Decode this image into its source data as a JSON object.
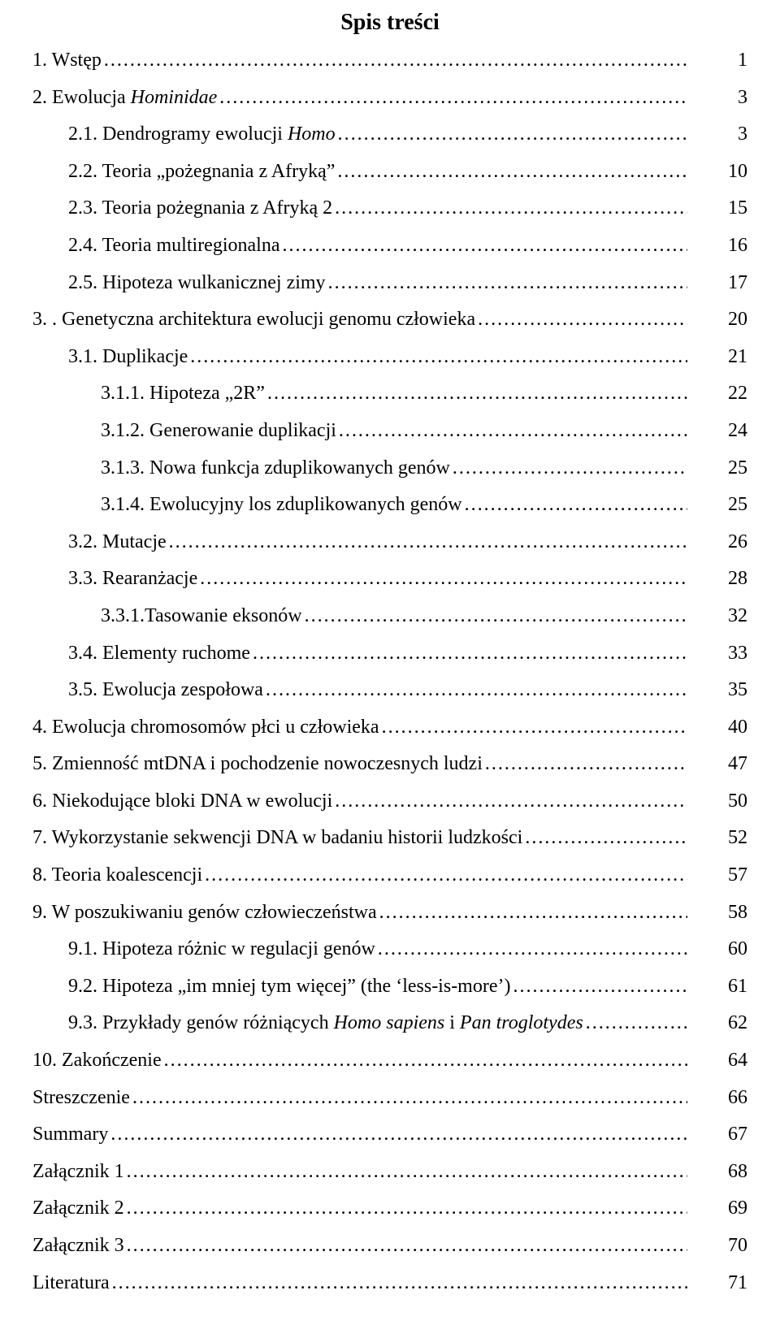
{
  "title": "Spis treści",
  "fonts": {
    "body_pt": 24,
    "title_pt": 28,
    "color": "#000000",
    "background": "#ffffff"
  },
  "entries": [
    {
      "label_pre": "1. Wstęp",
      "label_italic": "",
      "label_post": "",
      "page": "1",
      "indent": 0
    },
    {
      "label_pre": "2. Ewolucja ",
      "label_italic": "Hominidae",
      "label_post": "",
      "page": "3",
      "indent": 0
    },
    {
      "label_pre": "2.1. Dendrogramy ewolucji ",
      "label_italic": "Homo",
      "label_post": "",
      "page": "3",
      "indent": 1
    },
    {
      "label_pre": "2.2. Teoria „pożegnania z Afryką”",
      "label_italic": "",
      "label_post": "",
      "page": "10",
      "indent": 1
    },
    {
      "label_pre": "2.3. Teoria pożegnania z Afryką 2",
      "label_italic": "",
      "label_post": "",
      "page": "15",
      "indent": 1
    },
    {
      "label_pre": "2.4. Teoria multiregionalna",
      "label_italic": "",
      "label_post": "",
      "page": "16",
      "indent": 1
    },
    {
      "label_pre": "2.5. Hipoteza wulkanicznej zimy",
      "label_italic": "",
      "label_post": "",
      "page": "17",
      "indent": 1
    },
    {
      "label_pre": "3. . Genetyczna architektura ewolucji genomu człowieka",
      "label_italic": "",
      "label_post": "",
      "page": "20",
      "indent": 0
    },
    {
      "label_pre": "3.1. Duplikacje",
      "label_italic": "",
      "label_post": "",
      "page": "21",
      "indent": 1
    },
    {
      "label_pre": "3.1.1. Hipoteza „2R”",
      "label_italic": "",
      "label_post": "",
      "page": "22",
      "indent": 2
    },
    {
      "label_pre": "3.1.2. Generowanie duplikacji",
      "label_italic": "",
      "label_post": "",
      "page": "24",
      "indent": 2
    },
    {
      "label_pre": "3.1.3. Nowa funkcja zduplikowanych genów",
      "label_italic": "",
      "label_post": "",
      "page": "25",
      "indent": 2
    },
    {
      "label_pre": "3.1.4. Ewolucyjny los zduplikowanych genów",
      "label_italic": "",
      "label_post": "",
      "page": "25",
      "indent": 2
    },
    {
      "label_pre": "3.2. Mutacje",
      "label_italic": "",
      "label_post": "",
      "page": "26",
      "indent": 1
    },
    {
      "label_pre": "3.3. Rearanżacje",
      "label_italic": "",
      "label_post": "",
      "page": "28",
      "indent": 1
    },
    {
      "label_pre": "3.3.1.Tasowanie eksonów",
      "label_italic": "",
      "label_post": "",
      "page": "32",
      "indent": 2
    },
    {
      "label_pre": "3.4. Elementy ruchome",
      "label_italic": "",
      "label_post": "",
      "page": "33",
      "indent": 1
    },
    {
      "label_pre": "3.5. Ewolucja zespołowa",
      "label_italic": "",
      "label_post": "",
      "page": "35",
      "indent": 1
    },
    {
      "label_pre": "4. Ewolucja chromosomów płci u człowieka",
      "label_italic": "",
      "label_post": "",
      "page": "40",
      "indent": 0
    },
    {
      "label_pre": "5. Zmienność mtDNA i pochodzenie nowoczesnych ludzi",
      "label_italic": "",
      "label_post": "",
      "page": "47",
      "indent": 0
    },
    {
      "label_pre": "6. Niekodujące bloki DNA w ewolucji",
      "label_italic": "",
      "label_post": "",
      "page": "50",
      "indent": 0
    },
    {
      "label_pre": "7. Wykorzystanie sekwencji DNA w badaniu historii ludzkości",
      "label_italic": "",
      "label_post": "",
      "page": "52",
      "indent": 0
    },
    {
      "label_pre": "8. Teoria koalescencji",
      "label_italic": "",
      "label_post": "",
      "page": "57",
      "indent": 0
    },
    {
      "label_pre": "9. W poszukiwaniu genów człowieczeństwa",
      "label_italic": "",
      "label_post": "",
      "page": "58",
      "indent": 0
    },
    {
      "label_pre": "9.1. Hipoteza różnic w regulacji genów",
      "label_italic": "",
      "label_post": "",
      "page": "60",
      "indent": 1
    },
    {
      "label_pre": "9.2. Hipoteza „im mniej tym więcej” (the ‘less-is-more’)",
      "label_italic": "",
      "label_post": "",
      "page": "61",
      "indent": 1
    },
    {
      "label_pre": "9.3. Przykłady genów różniących ",
      "label_italic": "Homo sapiens",
      "label_post": " i ",
      "label_italic2": "Pan troglotydes",
      "label_post2": "",
      "page": "62",
      "indent": 1
    },
    {
      "label_pre": "10. Zakończenie",
      "label_italic": "",
      "label_post": "",
      "page": "64",
      "indent": 0
    },
    {
      "label_pre": "Streszczenie",
      "label_italic": "",
      "label_post": "",
      "page": "66",
      "indent": 0
    },
    {
      "label_pre": "Summary",
      "label_italic": "",
      "label_post": "",
      "page": "67",
      "indent": 0
    },
    {
      "label_pre": "Załącznik 1",
      "label_italic": "",
      "label_post": "",
      "page": "68",
      "indent": 0
    },
    {
      "label_pre": "Załącznik 2",
      "label_italic": "",
      "label_post": "",
      "page": "69",
      "indent": 0
    },
    {
      "label_pre": "Załącznik 3",
      "label_italic": "",
      "label_post": "",
      "page": "70",
      "indent": 0
    },
    {
      "label_pre": "Literatura",
      "label_italic": "",
      "label_post": "",
      "page": "71",
      "indent": 0
    }
  ]
}
